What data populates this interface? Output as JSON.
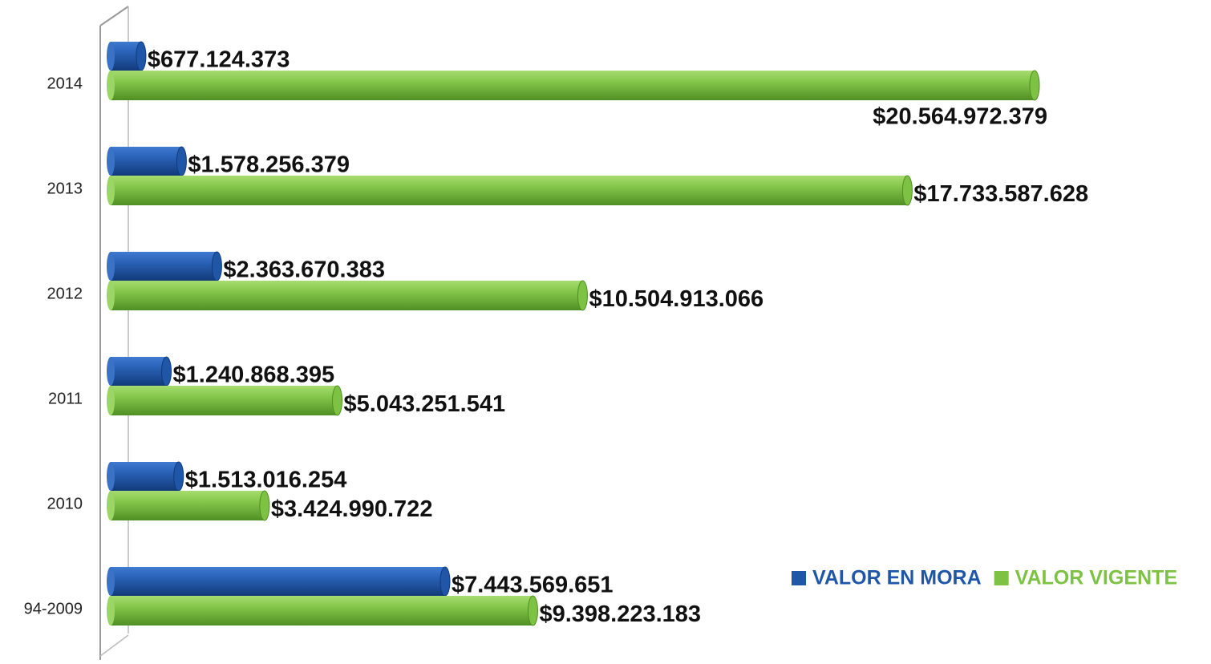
{
  "chart_data": {
    "type": "bar",
    "orientation": "horizontal",
    "categories": [
      "2014",
      "2013",
      "2012",
      "2011",
      "2010",
      "94-2009"
    ],
    "series": [
      {
        "name": "VALOR EN MORA",
        "color": "#1f56a8",
        "values": [
          677124373,
          1578256379,
          2363670383,
          1240868395,
          1513016254,
          7443569651
        ],
        "value_labels": [
          "$677.124.373",
          "$1.578.256.379",
          "$2.363.670.383",
          "$1.240.868.395",
          "$1.513.016.254",
          "$7.443.569.651"
        ]
      },
      {
        "name": "VALOR VIGENTE",
        "color": "#7dc242",
        "values": [
          20564972379,
          17733587628,
          10504913066,
          5043251541,
          3424990722,
          9398223183
        ],
        "value_labels": [
          "$20.564.972.379",
          "$17.733.587.628",
          "$10.504.913.066",
          "$5.043.251.541",
          "$3.424.990.722",
          "$9.398.223.183"
        ]
      }
    ],
    "legend": "bottom-right"
  }
}
